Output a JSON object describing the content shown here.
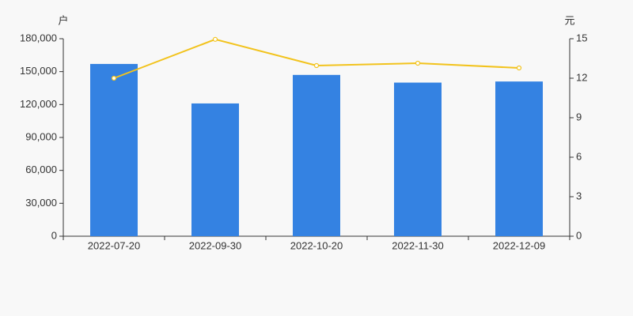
{
  "chart_data": {
    "type": "bar-line",
    "y_label": "户",
    "y2_label": "元",
    "categories": [
      "2022-07-20",
      "2022-09-30",
      "2022-10-20",
      "2022-11-30",
      "2022-12-09"
    ],
    "series": [
      {
        "type": "bar",
        "color": "#3482e2",
        "values": [
          157000,
          121000,
          147000,
          140000,
          141000
        ]
      },
      {
        "type": "line",
        "color": "#f2c31d",
        "axis": "y2",
        "values": [
          12.0,
          14.95,
          12.96,
          13.14,
          12.78
        ]
      }
    ],
    "ylim": [
      0,
      180000
    ],
    "yticks": [
      0,
      {
        "value": 30000,
        "label": "30,000"
      },
      {
        "value": 60000,
        "label": "60,000"
      },
      {
        "value": 90000,
        "label": "90,000"
      },
      {
        "value": 120000,
        "label": "120,000"
      },
      {
        "value": 150000,
        "label": "150,000"
      },
      {
        "value": 180000,
        "label": "180,000"
      }
    ],
    "y2lim": [
      0,
      15
    ],
    "y2ticks": [
      0,
      3,
      6,
      9,
      12,
      15
    ]
  }
}
